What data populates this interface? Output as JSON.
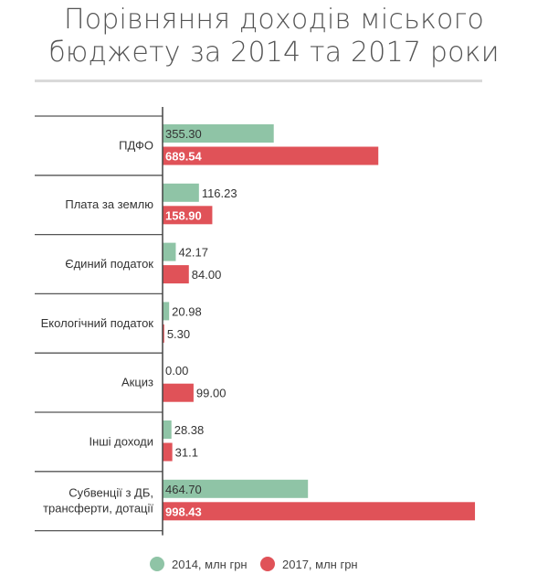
{
  "chart_data": {
    "type": "bar",
    "orientation": "horizontal",
    "title": "Порівняння доходів міського бюджету за 2014 та 2017 роки",
    "title_lines": [
      "Порівняння доходів міського",
      "бюджету за 2014 та 2017 роки"
    ],
    "categories": [
      [
        "ПДФО"
      ],
      [
        "Плата за землю"
      ],
      [
        "Єдиний податок"
      ],
      [
        "Екологічний податок"
      ],
      [
        "Акциз"
      ],
      [
        "Інші доходи"
      ],
      [
        "Субвенції з ДБ,",
        "трансферти, дотації"
      ]
    ],
    "series": [
      {
        "name": "2014, млн грн",
        "color": "#8fc4a6",
        "values": [
          355.3,
          116.23,
          42.17,
          20.98,
          0.0,
          28.38,
          464.7
        ],
        "labels": [
          "355.30",
          "116.23",
          "42.17",
          "20.98",
          "0.00",
          "28.38",
          "464.70"
        ]
      },
      {
        "name": "2017, млн грн",
        "color": "#e05258",
        "values": [
          689.54,
          158.9,
          84.0,
          5.3,
          99.0,
          31.1,
          998.43
        ],
        "labels": [
          "689.54",
          "158.90",
          "84.00",
          "5.30",
          "99.00",
          "31.1",
          "998.43"
        ]
      }
    ],
    "xlim": [
      0,
      1000
    ],
    "grid": false,
    "legend_position": "bottom"
  }
}
